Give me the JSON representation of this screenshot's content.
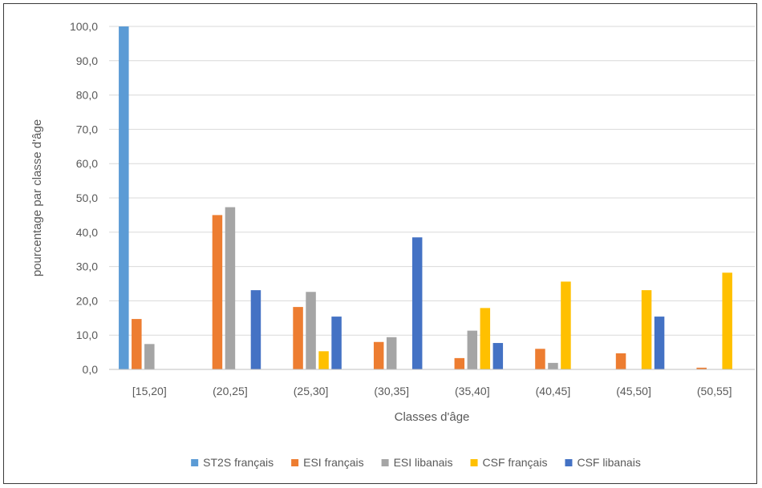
{
  "chart_data": {
    "type": "bar",
    "title": "",
    "xlabel": "Classes d'âge",
    "ylabel": "pourcentage par classe d'âge",
    "ylim": [
      0,
      100
    ],
    "y_ticks": [
      "0,0",
      "10,0",
      "20,0",
      "30,0",
      "40,0",
      "50,0",
      "60,0",
      "70,0",
      "80,0",
      "90,0",
      "100,0"
    ],
    "categories": [
      "[15,20]",
      "(20,25]",
      "(25,30]",
      "(30,35]",
      "(35,40]",
      "(40,45]",
      "(45,50]",
      "(50,55]"
    ],
    "grid": "horizontal",
    "legend_position": "bottom",
    "series": [
      {
        "name": "ST2S français",
        "color": "#5B9BD5",
        "values": [
          100.0,
          0,
          0,
          0,
          0,
          0,
          0,
          0
        ]
      },
      {
        "name": "ESI français",
        "color": "#ED7D31",
        "values": [
          14.7,
          45.0,
          18.2,
          8.0,
          3.3,
          6.0,
          4.7,
          0.5
        ]
      },
      {
        "name": "ESI libanais",
        "color": "#A5A5A5",
        "values": [
          7.4,
          47.3,
          22.6,
          9.4,
          11.3,
          1.9,
          0,
          0
        ]
      },
      {
        "name": "CSF français",
        "color": "#FFC000",
        "values": [
          0,
          0,
          5.3,
          0,
          17.9,
          25.6,
          23.1,
          28.2
        ]
      },
      {
        "name": "CSF libanais",
        "color": "#4472C4",
        "values": [
          0,
          23.1,
          15.4,
          38.5,
          7.7,
          0,
          15.4,
          0
        ]
      }
    ]
  }
}
